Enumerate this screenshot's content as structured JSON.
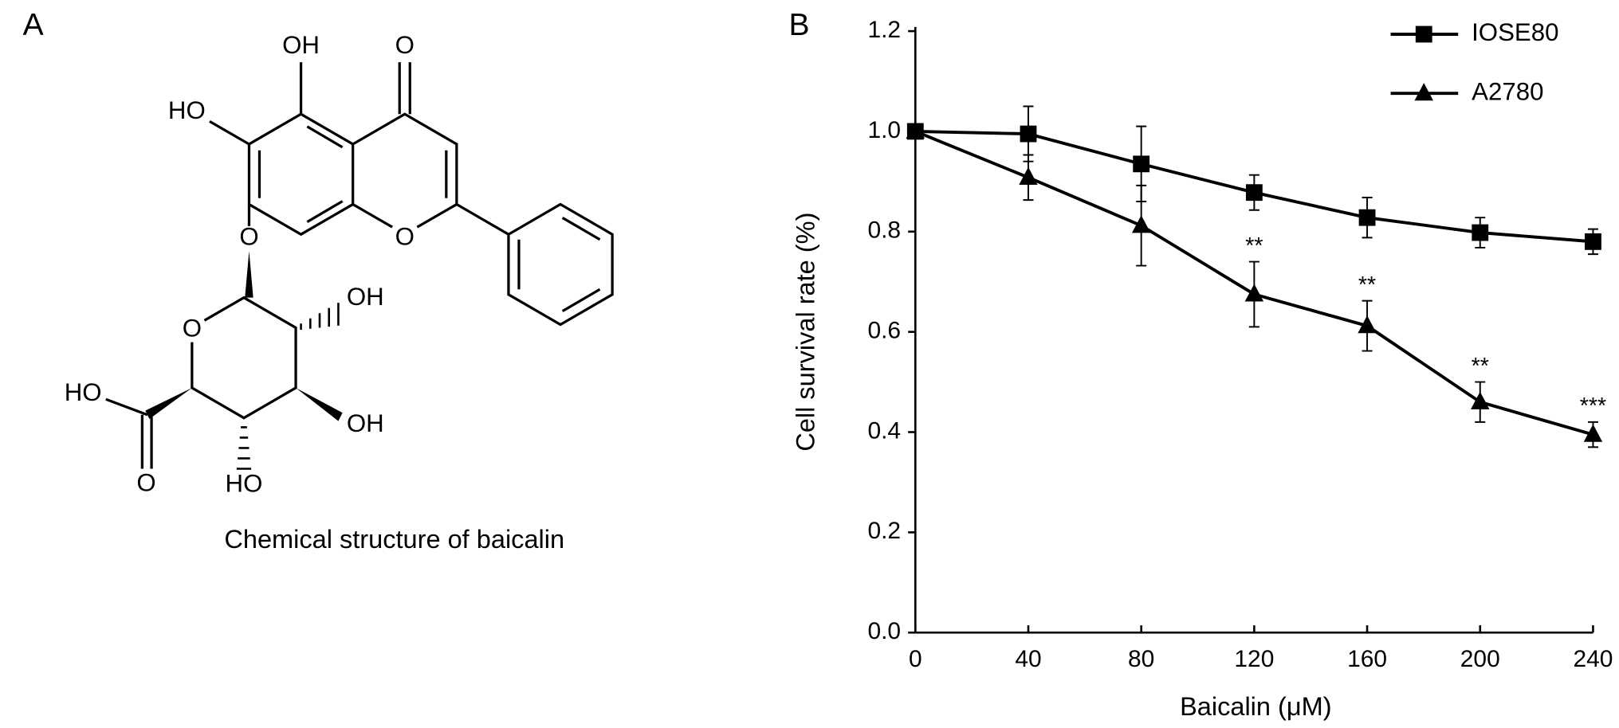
{
  "panel_a": {
    "label": "A",
    "atoms": [
      "OH",
      "O",
      "HO",
      "O",
      "O",
      "O",
      "OH",
      "OH",
      "HO",
      "HO",
      "O"
    ],
    "caption": "Chemical structure of baicalin"
  },
  "chart_data": {
    "type": "line",
    "panel_label": "B",
    "x": [
      0,
      40,
      80,
      120,
      160,
      200,
      240
    ],
    "xlabel": "Baicalin (μM)",
    "ylabel": "Cell survival rate (%)",
    "xlim": [
      0,
      240
    ],
    "xticks": [
      0,
      40,
      80,
      120,
      160,
      200,
      240
    ],
    "ylim": [
      0,
      1.2
    ],
    "yticks": [
      {
        "value": 0,
        "label": "0.0"
      },
      0.2,
      0.4,
      0.6,
      0.8,
      {
        "value": 1,
        "label": "1.0"
      },
      1.2
    ],
    "legend": "upper-right",
    "series": [
      {
        "name": "IOSE80",
        "color": "#000000",
        "marker": "square",
        "values": [
          1.0,
          0.995,
          0.935,
          0.878,
          0.828,
          0.798,
          0.78
        ],
        "errors": [
          0.012,
          0.055,
          0.075,
          0.035,
          0.04,
          0.03,
          0.025
        ]
      },
      {
        "name": "A2780",
        "color": "#000000",
        "marker": "triangle",
        "values": [
          1.0,
          0.908,
          0.812,
          0.675,
          0.612,
          0.46,
          0.395
        ],
        "errors": [
          0.012,
          0.045,
          0.08,
          0.065,
          0.05,
          0.04,
          0.025
        ],
        "significance": [
          null,
          null,
          null,
          "**",
          "**",
          "**",
          "***"
        ]
      }
    ]
  }
}
